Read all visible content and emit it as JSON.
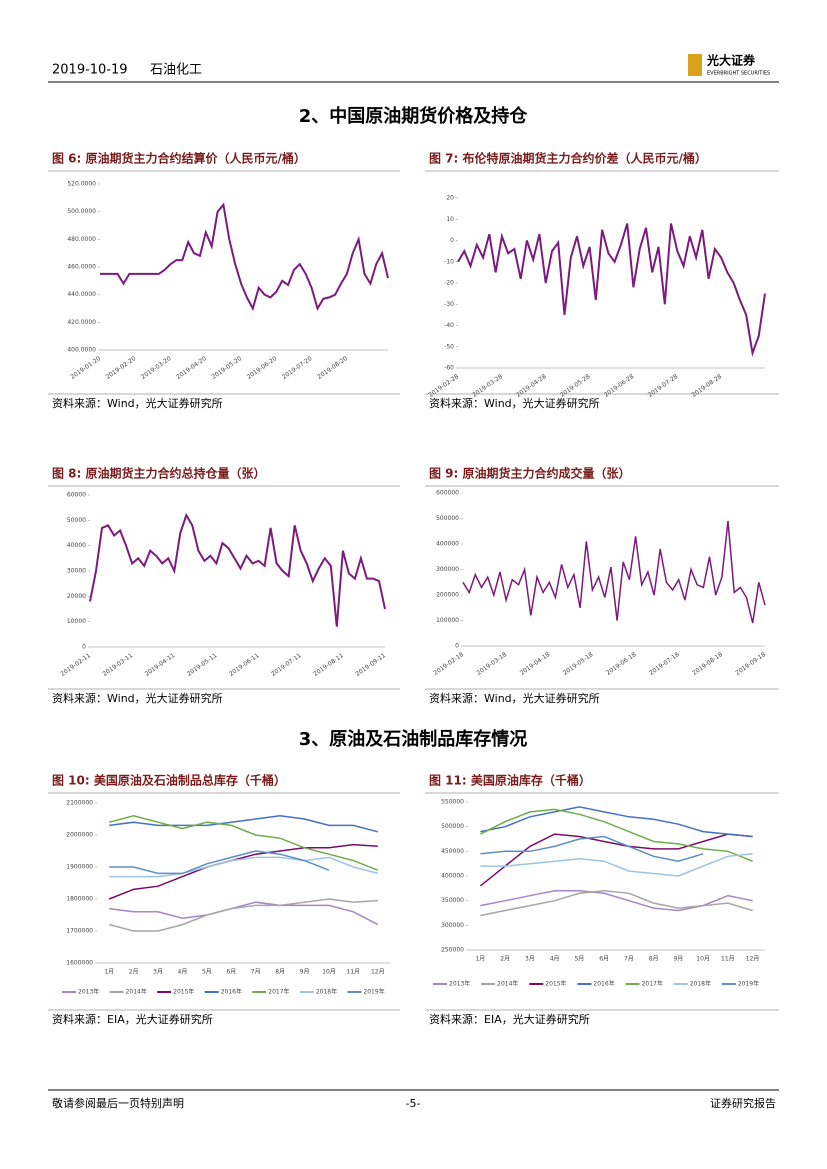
{
  "header": {
    "date": "2019-10-19",
    "sector": "石油化工",
    "logo": "光大证券",
    "logo_en": "EVERBRIGHT SECURITIES"
  },
  "sections": [
    {
      "title": "2、中国原油期货价格及持仓"
    },
    {
      "title": "3、原油及石油制品库存情况"
    }
  ],
  "chart_data": [
    {
      "type": "line",
      "title": "图 6:  原油期货主力合约结算价（人民币元/桶）",
      "source": "资料来源：Wind，光大证券研究所",
      "color": "#7d1a7d",
      "categories": [
        "2019-01-20",
        null,
        null,
        null,
        null,
        null,
        "2019-02-20",
        null,
        null,
        null,
        null,
        null,
        "2019-03-20",
        null,
        null,
        null,
        null,
        null,
        "2019-04-20",
        null,
        null,
        null,
        null,
        null,
        "2019-05-20",
        null,
        null,
        null,
        null,
        null,
        "2019-06-20",
        null,
        null,
        null,
        null,
        null,
        "2019-07-20",
        null,
        null,
        null,
        null,
        null,
        "2019-08-20",
        null,
        null,
        null,
        null,
        null,
        null,
        null
      ],
      "values": [
        455,
        455,
        455,
        455,
        448,
        455,
        455,
        455,
        455,
        455,
        455,
        458,
        462,
        465,
        465,
        478,
        470,
        468,
        485,
        475,
        500,
        505,
        480,
        462,
        448,
        438,
        430,
        445,
        440,
        438,
        442,
        450,
        447,
        458,
        462,
        455,
        445,
        430,
        437,
        438,
        440,
        448,
        455,
        470,
        480,
        455,
        448,
        462,
        470,
        452
      ],
      "ylim": [
        400,
        520
      ],
      "yticks": [
        {
          "value": 400,
          "label": "400.0000"
        },
        {
          "value": 420,
          "label": "420.0000"
        },
        {
          "value": 440,
          "label": "440.0000"
        },
        {
          "value": 460,
          "label": "460.0000"
        },
        {
          "value": 480,
          "label": "480.0000"
        },
        {
          "value": 500,
          "label": "500.0000"
        },
        {
          "value": 520,
          "label": "520.0000"
        }
      ]
    },
    {
      "type": "line",
      "title": "图 7:  布伦特原油期货主力合约价差（人民币元/桶）",
      "source": "资料来源：Wind，光大证券研究所",
      "color": "#7d1a7d",
      "categories": [
        "2019-02-28",
        null,
        null,
        null,
        null,
        null,
        null,
        "2019-03-28",
        null,
        null,
        null,
        null,
        null,
        null,
        "2019-04-28",
        null,
        null,
        null,
        null,
        null,
        null,
        "2019-05-28",
        null,
        null,
        null,
        null,
        null,
        null,
        "2019-06-28",
        null,
        null,
        null,
        null,
        null,
        null,
        "2019-07-28",
        null,
        null,
        null,
        null,
        null,
        null,
        "2019-08-28",
        null,
        null,
        null,
        null,
        null,
        null,
        null
      ],
      "values": [
        -10,
        -5,
        -12,
        -2,
        -8,
        3,
        -15,
        2,
        -6,
        -4,
        -18,
        0,
        -9,
        3,
        -20,
        -5,
        -1,
        -35,
        -8,
        2,
        -12,
        -3,
        -28,
        5,
        -6,
        -10,
        -2,
        8,
        -22,
        -4,
        6,
        -15,
        -3,
        -30,
        8,
        -5,
        -12,
        2,
        -8,
        5,
        -18,
        -4,
        -8,
        -15,
        -20,
        -28,
        -35,
        -53,
        -45,
        -25
      ],
      "ylim": [
        -60,
        20
      ],
      "yticks": [
        -60,
        -50,
        -40,
        -30,
        -20,
        -10,
        0,
        10,
        20
      ]
    },
    {
      "type": "line",
      "title": "图 8:  原油期货主力合约总持仓量（张）",
      "source": "资料来源：Wind，光大证券研究所",
      "color": "#7d1a7d",
      "categories": [
        "2019-02-11",
        null,
        null,
        null,
        null,
        null,
        null,
        "2019-03-11",
        null,
        null,
        null,
        null,
        null,
        null,
        "2019-04-11",
        null,
        null,
        null,
        null,
        null,
        null,
        "2019-05-11",
        null,
        null,
        null,
        null,
        null,
        null,
        "2019-06-11",
        null,
        null,
        null,
        null,
        null,
        null,
        "2019-07-11",
        null,
        null,
        null,
        null,
        null,
        null,
        "2019-08-11",
        null,
        null,
        null,
        null,
        null,
        null,
        "2019-09-11"
      ],
      "values": [
        18000,
        30000,
        47000,
        48000,
        44000,
        46000,
        40000,
        33000,
        35000,
        32000,
        38000,
        36000,
        33000,
        35000,
        30000,
        45000,
        52000,
        48000,
        38000,
        34000,
        36000,
        33000,
        41000,
        39000,
        35000,
        31000,
        36000,
        33000,
        34000,
        32000,
        47000,
        33000,
        30000,
        28000,
        48000,
        38000,
        33000,
        26000,
        31000,
        35000,
        32000,
        8000,
        38000,
        29000,
        27000,
        35000,
        27000,
        27000,
        26000,
        15000
      ],
      "ylim": [
        0,
        60000
      ],
      "yticks": [
        0,
        10000,
        20000,
        30000,
        40000,
        50000,
        60000
      ]
    },
    {
      "type": "line",
      "title": "图 9:  原油期货主力合约成交量（张）",
      "source": "资料来源：Wind，光大证券研究所",
      "color": "#7d1a7d",
      "categories": [
        "2019-02-18",
        null,
        null,
        null,
        null,
        null,
        null,
        "2019-03-18",
        null,
        null,
        null,
        null,
        null,
        null,
        "2019-04-18",
        null,
        null,
        null,
        null,
        null,
        null,
        "2019-05-18",
        null,
        null,
        null,
        null,
        null,
        null,
        "2019-06-18",
        null,
        null,
        null,
        null,
        null,
        null,
        "2019-07-18",
        null,
        null,
        null,
        null,
        null,
        null,
        "2019-08-18",
        null,
        null,
        null,
        null,
        null,
        null,
        "2019-09-18"
      ],
      "values": [
        250000,
        210000,
        280000,
        230000,
        270000,
        200000,
        290000,
        180000,
        260000,
        240000,
        300000,
        120000,
        270000,
        210000,
        250000,
        190000,
        320000,
        230000,
        280000,
        150000,
        410000,
        220000,
        270000,
        190000,
        310000,
        100000,
        330000,
        260000,
        430000,
        240000,
        290000,
        200000,
        380000,
        250000,
        220000,
        260000,
        180000,
        300000,
        240000,
        230000,
        350000,
        200000,
        270000,
        490000,
        210000,
        230000,
        190000,
        90000,
        250000,
        160000
      ],
      "ylim": [
        0,
        600000
      ],
      "yticks": [
        0,
        100000,
        200000,
        300000,
        400000,
        500000,
        600000
      ]
    },
    {
      "type": "line",
      "title": "图 10:  美国原油及石油制品总库存（千桶）",
      "source": "资料来源：EIA，光大证券研究所",
      "categories": [
        "1月",
        "2月",
        "3月",
        "4月",
        "5月",
        "6月",
        "7月",
        "8月",
        "9月",
        "10月",
        "11月",
        "12月"
      ],
      "series": [
        {
          "name": "2013年",
          "color": "#a585c9",
          "values": [
            1770000,
            1760000,
            1760000,
            1740000,
            1750000,
            1770000,
            1790000,
            1780000,
            1780000,
            1780000,
            1760000,
            1720000
          ]
        },
        {
          "name": "2014年",
          "color": "#a6a6a6",
          "values": [
            1720000,
            1700000,
            1700000,
            1720000,
            1750000,
            1770000,
            1780000,
            1780000,
            1790000,
            1800000,
            1790000,
            1795000
          ]
        },
        {
          "name": "2015年",
          "color": "#7b0c6b",
          "values": [
            1800000,
            1830000,
            1840000,
            1870000,
            1900000,
            1920000,
            1940000,
            1950000,
            1960000,
            1960000,
            1970000,
            1965000
          ]
        },
        {
          "name": "2016年",
          "color": "#4472c4",
          "values": [
            2030000,
            2040000,
            2030000,
            2030000,
            2030000,
            2040000,
            2050000,
            2060000,
            2050000,
            2030000,
            2030000,
            2010000
          ]
        },
        {
          "name": "2017年",
          "color": "#70ad47",
          "values": [
            2040000,
            2060000,
            2040000,
            2020000,
            2040000,
            2030000,
            2000000,
            1990000,
            1960000,
            1940000,
            1920000,
            1890000
          ]
        },
        {
          "name": "2018年",
          "color": "#9dc3e6",
          "values": [
            1870000,
            1870000,
            1870000,
            1880000,
            1900000,
            1920000,
            1930000,
            1930000,
            1920000,
            1930000,
            1900000,
            1880000
          ]
        },
        {
          "name": "2019年",
          "color": "#5b8fc7",
          "values": [
            1900000,
            1900000,
            1880000,
            1880000,
            1910000,
            1930000,
            1950000,
            1940000,
            1920000,
            1890000,
            null,
            null
          ]
        }
      ],
      "ylim": [
        1600000,
        2100000
      ],
      "yticks": [
        1600000,
        1700000,
        1800000,
        1900000,
        2000000,
        2100000
      ]
    },
    {
      "type": "line",
      "title": "图 11:  美国原油库存（千桶）",
      "source": "资料来源：EIA，光大证券研究所",
      "categories": [
        "1月",
        "2月",
        "3月",
        "4月",
        "5月",
        "6月",
        "7月",
        "8月",
        "9月",
        "10月",
        "11月",
        "12月"
      ],
      "series": [
        {
          "name": "2013年",
          "color": "#a585c9",
          "values": [
            340000,
            350000,
            360000,
            370000,
            370000,
            365000,
            350000,
            335000,
            330000,
            340000,
            360000,
            350000
          ]
        },
        {
          "name": "2014年",
          "color": "#a6a6a6",
          "values": [
            320000,
            330000,
            340000,
            350000,
            365000,
            370000,
            365000,
            345000,
            335000,
            340000,
            345000,
            330000
          ]
        },
        {
          "name": "2015年",
          "color": "#7b0c6b",
          "values": [
            380000,
            420000,
            460000,
            485000,
            480000,
            470000,
            460000,
            455000,
            455000,
            470000,
            485000,
            480000
          ]
        },
        {
          "name": "2016年",
          "color": "#4472c4",
          "values": [
            490000,
            500000,
            520000,
            530000,
            540000,
            530000,
            520000,
            515000,
            505000,
            490000,
            485000,
            480000
          ]
        },
        {
          "name": "2017年",
          "color": "#70ad47",
          "values": [
            485000,
            510000,
            530000,
            535000,
            525000,
            510000,
            490000,
            470000,
            465000,
            455000,
            450000,
            430000
          ]
        },
        {
          "name": "2018年",
          "color": "#9dc3e6",
          "values": [
            420000,
            420000,
            425000,
            430000,
            435000,
            430000,
            410000,
            405000,
            400000,
            420000,
            440000,
            445000
          ]
        },
        {
          "name": "2019年",
          "color": "#5b8fc7",
          "values": [
            445000,
            450000,
            450000,
            460000,
            475000,
            480000,
            460000,
            440000,
            430000,
            445000,
            null,
            null
          ]
        }
      ],
      "ylim": [
        250000,
        550000
      ],
      "yticks": [
        250000,
        300000,
        350000,
        400000,
        450000,
        500000,
        550000
      ]
    }
  ],
  "footer": {
    "disclaimer": "敬请参阅最后一页特别声明",
    "page": "-5-",
    "type": "证券研究报告"
  }
}
